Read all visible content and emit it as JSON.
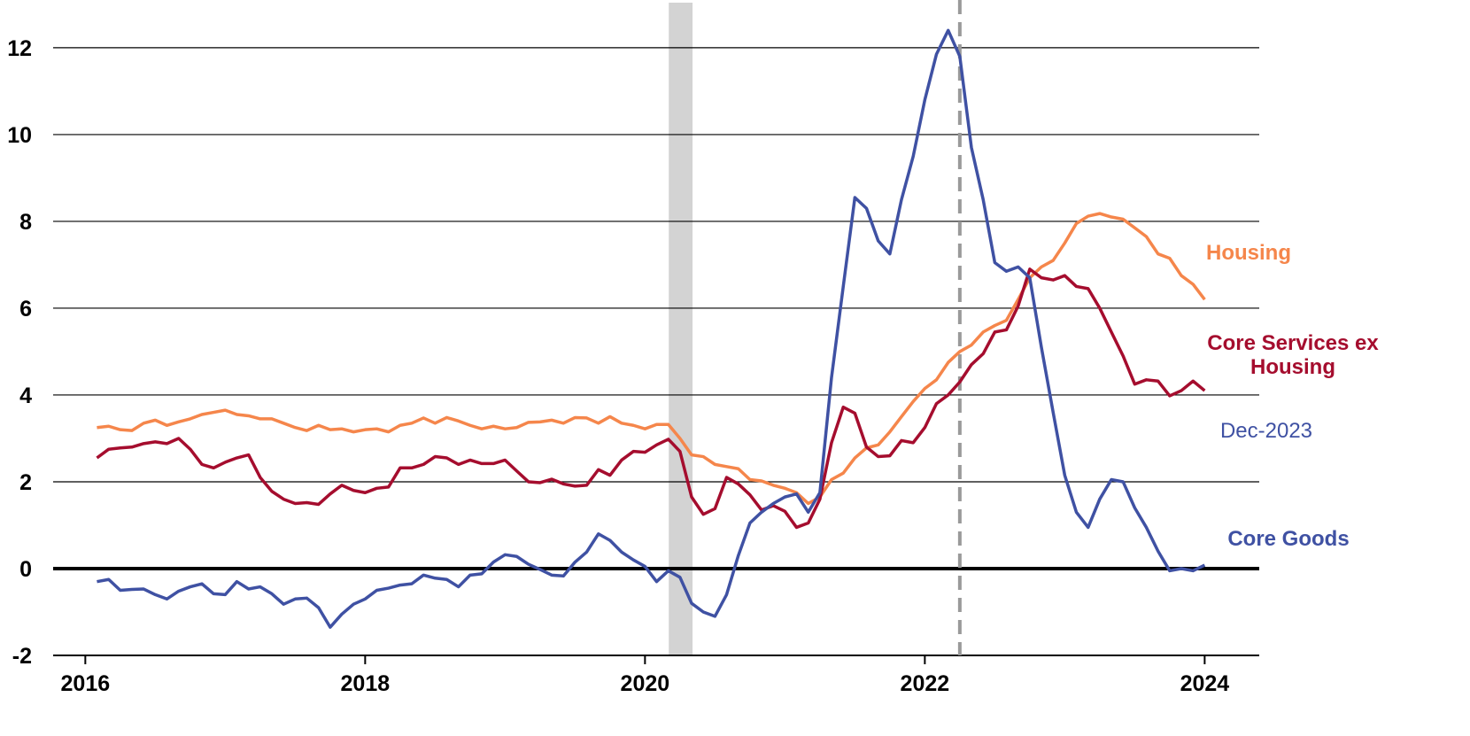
{
  "chart_data": {
    "type": "line",
    "annotation": "Dec-2023",
    "xlim": [
      2015.77,
      2024.39
    ],
    "ylim": [
      -2,
      13.1
    ],
    "xticks": [
      2016,
      2018,
      2020,
      2022,
      2024
    ],
    "yticks": [
      -2,
      0,
      2,
      4,
      6,
      8,
      10,
      12
    ],
    "grid": true,
    "shaded_range": [
      2020.17,
      2020.34
    ],
    "vline": 2022.25,
    "x": [
      2016.083,
      2016.167,
      2016.25,
      2016.333,
      2016.417,
      2016.5,
      2016.583,
      2016.667,
      2016.75,
      2016.833,
      2016.917,
      2017,
      2017.083,
      2017.167,
      2017.25,
      2017.333,
      2017.417,
      2017.5,
      2017.583,
      2017.667,
      2017.75,
      2017.833,
      2017.917,
      2018,
      2018.083,
      2018.167,
      2018.25,
      2018.333,
      2018.417,
      2018.5,
      2018.583,
      2018.667,
      2018.75,
      2018.833,
      2018.917,
      2019,
      2019.083,
      2019.167,
      2019.25,
      2019.333,
      2019.417,
      2019.5,
      2019.583,
      2019.667,
      2019.75,
      2019.833,
      2019.917,
      2020,
      2020.083,
      2020.167,
      2020.25,
      2020.333,
      2020.417,
      2020.5,
      2020.583,
      2020.667,
      2020.75,
      2020.833,
      2020.917,
      2021,
      2021.083,
      2021.167,
      2021.25,
      2021.333,
      2021.417,
      2021.5,
      2021.583,
      2021.667,
      2021.75,
      2021.833,
      2021.917,
      2022,
      2022.083,
      2022.167,
      2022.25,
      2022.333,
      2022.417,
      2022.5,
      2022.583,
      2022.667,
      2022.75,
      2022.833,
      2022.917,
      2023,
      2023.083,
      2023.167,
      2023.25,
      2023.333,
      2023.417,
      2023.5,
      2023.583,
      2023.667,
      2023.75,
      2023.833,
      2023.917,
      2024
    ],
    "series": [
      {
        "name": "Housing",
        "color": "#f5864b",
        "values": [
          3.25,
          3.28,
          3.2,
          3.18,
          3.35,
          3.42,
          3.3,
          3.38,
          3.45,
          3.55,
          3.6,
          3.65,
          3.55,
          3.52,
          3.45,
          3.45,
          3.35,
          3.25,
          3.18,
          3.3,
          3.2,
          3.22,
          3.15,
          3.2,
          3.22,
          3.15,
          3.3,
          3.35,
          3.47,
          3.35,
          3.48,
          3.4,
          3.3,
          3.22,
          3.28,
          3.22,
          3.25,
          3.37,
          3.38,
          3.42,
          3.35,
          3.48,
          3.47,
          3.35,
          3.5,
          3.35,
          3.3,
          3.22,
          3.32,
          3.32,
          3.0,
          2.62,
          2.58,
          2.4,
          2.35,
          2.3,
          2.05,
          2.02,
          1.92,
          1.85,
          1.75,
          1.5,
          1.65,
          2.05,
          2.2,
          2.55,
          2.78,
          2.85,
          3.15,
          3.5,
          3.85,
          4.15,
          4.35,
          4.75,
          5.0,
          5.15,
          5.45,
          5.6,
          5.72,
          6.2,
          6.7,
          6.95,
          7.1,
          7.5,
          7.95,
          8.12,
          8.18,
          8.1,
          8.05,
          7.85,
          7.65,
          7.25,
          7.15,
          6.75,
          6.55,
          6.2
        ]
      },
      {
        "name": "Core Services ex Housing",
        "color": "#a50d2e",
        "values": [
          2.55,
          2.75,
          2.78,
          2.8,
          2.88,
          2.92,
          2.88,
          3.0,
          2.75,
          2.4,
          2.32,
          2.45,
          2.55,
          2.62,
          2.1,
          1.78,
          1.6,
          1.5,
          1.52,
          1.48,
          1.72,
          1.92,
          1.8,
          1.75,
          1.85,
          1.88,
          2.32,
          2.32,
          2.4,
          2.58,
          2.55,
          2.4,
          2.5,
          2.42,
          2.42,
          2.5,
          2.25,
          2.0,
          1.98,
          2.06,
          1.95,
          1.9,
          1.92,
          2.28,
          2.15,
          2.5,
          2.7,
          2.68,
          2.85,
          2.98,
          2.7,
          1.65,
          1.25,
          1.38,
          2.1,
          1.95,
          1.7,
          1.35,
          1.45,
          1.32,
          0.95,
          1.05,
          1.6,
          2.9,
          3.72,
          3.58,
          2.8,
          2.58,
          2.6,
          2.95,
          2.9,
          3.25,
          3.8,
          4.0,
          4.3,
          4.7,
          4.95,
          5.45,
          5.5,
          6.05,
          6.9,
          6.7,
          6.65,
          6.75,
          6.5,
          6.45,
          6.0,
          5.45,
          4.9,
          4.25,
          4.35,
          4.32,
          3.98,
          4.1,
          4.32,
          4.1
        ]
      },
      {
        "name": "Core Goods",
        "color": "#3f51a3",
        "values": [
          -0.3,
          -0.25,
          -0.5,
          -0.48,
          -0.47,
          -0.6,
          -0.7,
          -0.52,
          -0.42,
          -0.35,
          -0.58,
          -0.6,
          -0.3,
          -0.47,
          -0.42,
          -0.58,
          -0.82,
          -0.7,
          -0.68,
          -0.9,
          -1.35,
          -1.05,
          -0.82,
          -0.7,
          -0.5,
          -0.45,
          -0.38,
          -0.35,
          -0.15,
          -0.22,
          -0.25,
          -0.42,
          -0.15,
          -0.12,
          0.15,
          0.32,
          0.28,
          0.1,
          -0.02,
          -0.15,
          -0.17,
          0.15,
          0.38,
          0.8,
          0.65,
          0.38,
          0.2,
          0.05,
          -0.3,
          -0.05,
          -0.2,
          -0.8,
          -1.0,
          -1.1,
          -0.6,
          0.3,
          1.05,
          1.3,
          1.5,
          1.65,
          1.72,
          1.3,
          1.75,
          4.4,
          6.5,
          8.55,
          8.3,
          7.55,
          7.25,
          8.5,
          9.5,
          10.8,
          11.85,
          12.4,
          11.8,
          9.7,
          8.5,
          7.05,
          6.85,
          6.95,
          6.7,
          5.1,
          3.6,
          2.15,
          1.3,
          0.95,
          1.6,
          2.05,
          2.0,
          1.4,
          0.95,
          0.4,
          -0.05,
          0.0,
          -0.05,
          0.08
        ]
      }
    ]
  }
}
